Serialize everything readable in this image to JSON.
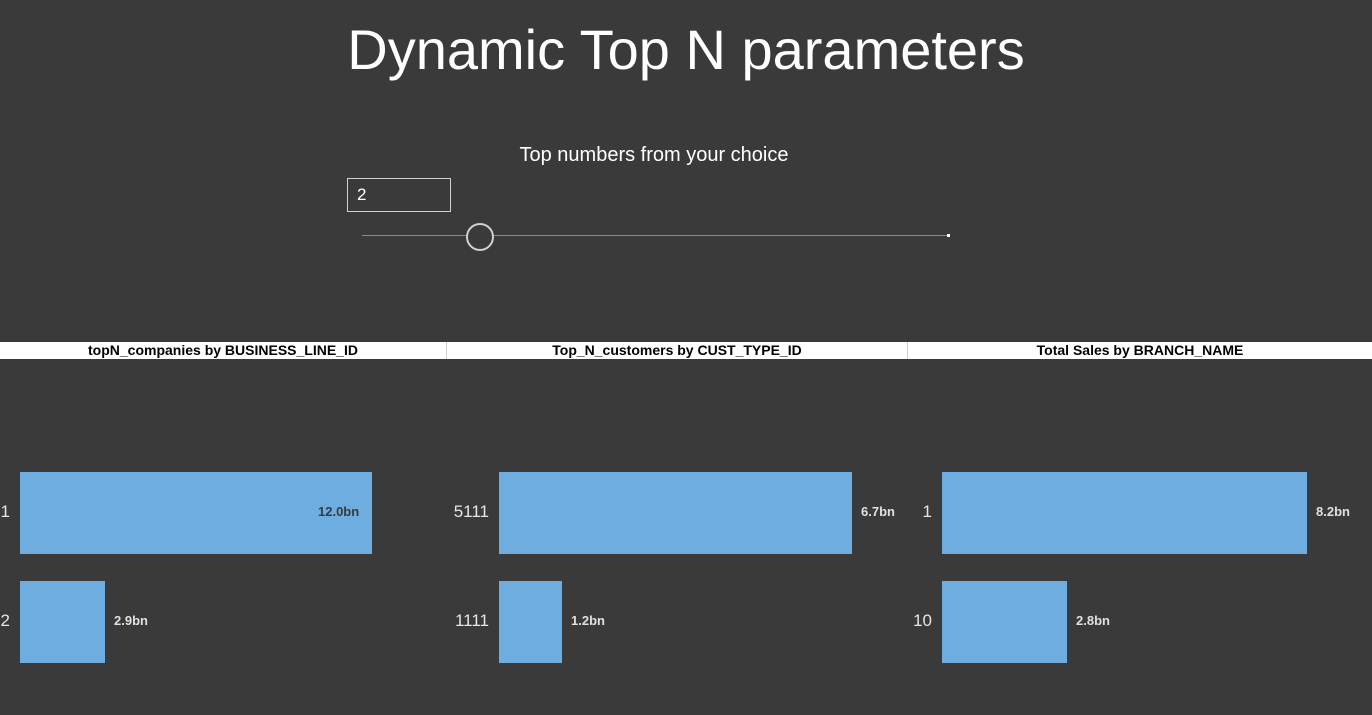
{
  "page": {
    "title": "Dynamic Top N parameters"
  },
  "parameter": {
    "label": "Top numbers from your choice",
    "value": "2",
    "slider_fraction": 0.2
  },
  "colors": {
    "background": "#3a3a3a",
    "bar": "#6dade0",
    "header_band": "#ffffff"
  },
  "panels": [
    {
      "title": "topN_companies by BUSINESS_LINE_ID"
    },
    {
      "title": "Top_N_customers by CUST_TYPE_ID"
    },
    {
      "title": "Total Sales by BRANCH_NAME"
    }
  ],
  "chart_data": [
    {
      "type": "bar",
      "orientation": "horizontal",
      "title": "topN_companies by BUSINESS_LINE_ID",
      "categories": [
        "1",
        "2"
      ],
      "values": [
        12.0,
        2.9
      ],
      "labels": [
        "12.0bn",
        "2.9bn"
      ],
      "unit": "bn",
      "xlim": [
        0,
        12.5
      ]
    },
    {
      "type": "bar",
      "orientation": "horizontal",
      "title": "Top_N_customers by CUST_TYPE_ID",
      "categories": [
        "5111",
        "1111"
      ],
      "values": [
        6.7,
        1.2
      ],
      "labels": [
        "6.7bn",
        "1.2bn"
      ],
      "unit": "bn",
      "xlim": [
        0,
        6.7
      ]
    },
    {
      "type": "bar",
      "orientation": "horizontal",
      "title": "Total Sales by BRANCH_NAME",
      "categories": [
        "1",
        "10"
      ],
      "values": [
        8.2,
        2.8
      ],
      "labels": [
        "8.2bn",
        "2.8bn"
      ],
      "unit": "bn",
      "xlim": [
        0,
        8.2
      ]
    }
  ]
}
